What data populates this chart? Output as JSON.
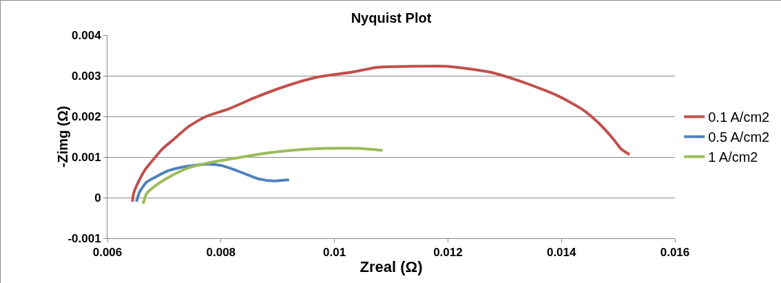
{
  "chart_data": {
    "type": "line",
    "title": "Nyquist Plot",
    "xlabel": "Zreal (Ω)",
    "ylabel": "-Zimg (Ω)",
    "xlim": [
      0.006,
      0.016
    ],
    "xticks": [
      0.006,
      0.008,
      0.01,
      0.012,
      0.014,
      0.016
    ],
    "ylim": [
      -0.001,
      0.004
    ],
    "yticks": [
      -0.001,
      0,
      0.001,
      0.002,
      0.003,
      0.004
    ],
    "grid": "y",
    "legend": "right",
    "marker": "none",
    "line_style": "solid",
    "series": [
      {
        "name": "0.1 A/cm2",
        "color": "#c0504d",
        "x": [
          0.00644,
          0.00646,
          0.00655,
          0.00667,
          0.00681,
          0.00697,
          0.00718,
          0.00742,
          0.00774,
          0.00813,
          0.00861,
          0.00922,
          0.00971,
          0.01031,
          0.01078,
          0.01129,
          0.01201,
          0.01274,
          0.01335,
          0.01393,
          0.01436,
          0.01466,
          0.01491,
          0.01505,
          0.0152
        ],
        "values": [
          -0.0001,
          0.0001,
          0.0004,
          0.0007,
          0.00094,
          0.0012,
          0.00145,
          0.00174,
          0.002,
          0.00218,
          0.00247,
          0.00278,
          0.00297,
          0.00309,
          0.00321,
          0.00323,
          0.00323,
          0.00309,
          0.00283,
          0.00251,
          0.00218,
          0.00183,
          0.00145,
          0.0012,
          0.00106
        ]
      },
      {
        "name": "0.5 A/cm2",
        "color": "#4f81bd",
        "x": [
          0.00651,
          0.00657,
          0.00669,
          0.00685,
          0.00709,
          0.0074,
          0.00776,
          0.00801,
          0.00825,
          0.00847,
          0.00867,
          0.00892,
          0.0092
        ],
        "values": [
          -0.0001,
          0.00015,
          0.00038,
          0.00051,
          0.00067,
          0.00077,
          0.00082,
          0.00079,
          0.00068,
          0.00056,
          0.00046,
          0.00041,
          0.00044
        ]
      },
      {
        "name": "1 A/cm2",
        "color": "#9bbb59",
        "x": [
          0.00663,
          0.00669,
          0.00685,
          0.00709,
          0.0074,
          0.00776,
          0.00825,
          0.00873,
          0.00922,
          0.00983,
          0.01043,
          0.01085
        ],
        "values": [
          -0.00015,
          0.0001,
          0.0003,
          0.00051,
          0.00072,
          0.00085,
          0.00097,
          0.00108,
          0.00116,
          0.00121,
          0.00121,
          0.00116
        ]
      }
    ]
  }
}
